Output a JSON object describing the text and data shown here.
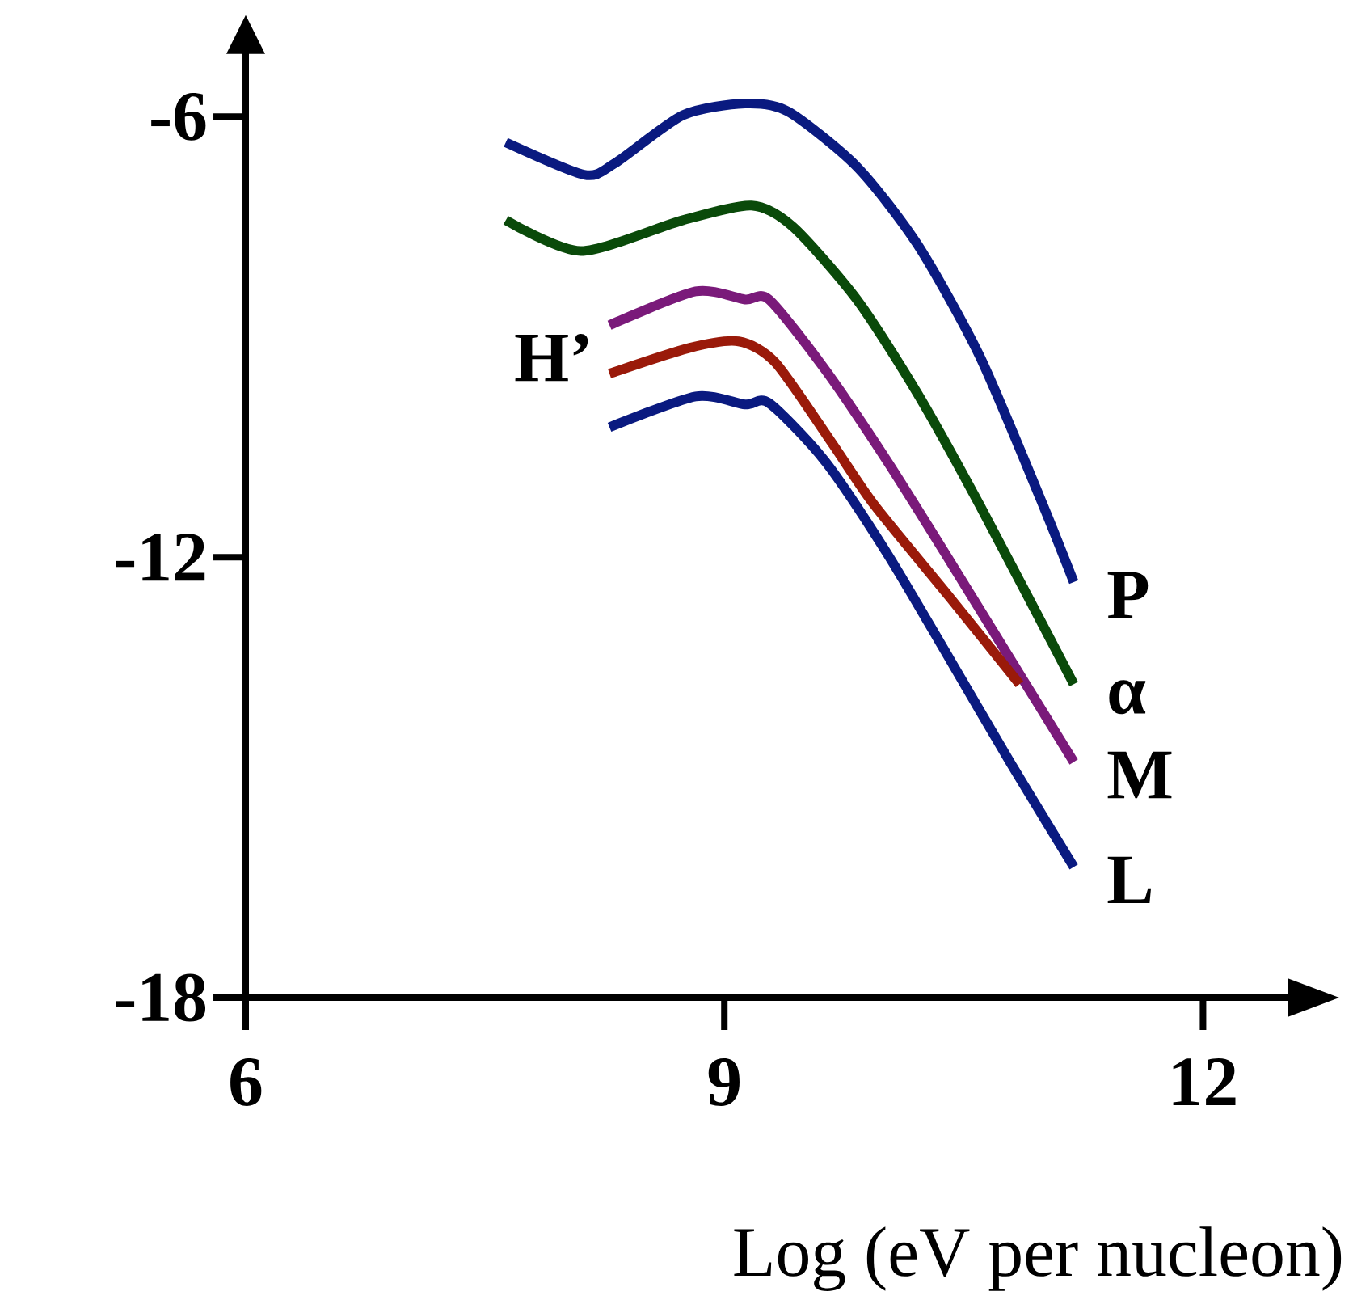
{
  "chart_data": {
    "type": "line",
    "xlabel": "Log (eV per nucleon)",
    "xlim": [
      6,
      12.55
    ],
    "ylim": [
      -18,
      -5.1
    ],
    "xticks": [
      6,
      9,
      12
    ],
    "yticks": [
      -18,
      -12,
      -6
    ],
    "marker": "none",
    "line_style": "solid",
    "series": [
      {
        "name": "P",
        "color": "#0a1a80",
        "x": [
          7.63,
          8.12,
          8.31,
          8.74,
          9.13,
          9.4,
          9.83,
          10.21,
          10.6,
          10.98,
          11.19
        ],
        "values": [
          -6.35,
          -6.79,
          -6.64,
          -5.98,
          -5.82,
          -5.93,
          -6.68,
          -7.74,
          -9.26,
          -11.2,
          -12.34
        ]
      },
      {
        "name": "α",
        "color": "#0a4a0a",
        "x": [
          7.63,
          8.1,
          8.74,
          9.17,
          9.43,
          9.83,
          10.21,
          10.6,
          11.19
        ],
        "values": [
          -7.41,
          -7.83,
          -7.41,
          -7.21,
          -7.5,
          -8.49,
          -9.77,
          -11.29,
          -13.73
        ]
      },
      {
        "name": "M",
        "color": "#7a1a7a",
        "x": [
          8.28,
          8.82,
          9.13,
          9.28,
          9.63,
          10.02,
          10.41,
          10.79,
          11.19
        ],
        "values": [
          -8.84,
          -8.38,
          -8.49,
          -8.49,
          -9.44,
          -10.69,
          -12.04,
          -13.38,
          -14.79
        ]
      },
      {
        "name": "H’",
        "color": "#9a1a0a",
        "x": [
          8.28,
          8.78,
          9.09,
          9.32,
          9.67,
          9.94,
          10.41,
          10.85
        ],
        "values": [
          -9.5,
          -9.15,
          -9.06,
          -9.35,
          -10.43,
          -11.29,
          -12.54,
          -13.73
        ]
      },
      {
        "name": "L",
        "color": "#0a1a80",
        "x": [
          8.28,
          8.82,
          9.13,
          9.28,
          9.63,
          10.02,
          10.41,
          10.79,
          11.19
        ],
        "values": [
          -10.23,
          -9.81,
          -9.92,
          -9.9,
          -10.69,
          -11.95,
          -13.38,
          -14.79,
          -16.22
        ]
      }
    ]
  }
}
